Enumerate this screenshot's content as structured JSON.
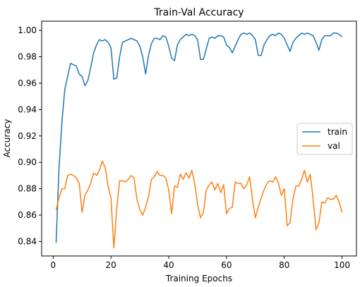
{
  "chart_data": {
    "type": "line",
    "title": "Train-Val Accuracy",
    "xlabel": "Training Epochs",
    "ylabel": "Accuracy",
    "xlim": [
      -4,
      105
    ],
    "ylim": [
      0.829,
      1.007
    ],
    "xticks": [
      0,
      20,
      40,
      60,
      80,
      100
    ],
    "yticks": [
      0.84,
      0.86,
      0.88,
      0.9,
      0.92,
      0.94,
      0.96,
      0.98,
      1.0
    ],
    "ytick_labels": [
      "0.84",
      "0.86",
      "0.88",
      "0.90",
      "0.92",
      "0.94",
      "0.96",
      "0.98",
      "1.00"
    ],
    "grid": false,
    "legend_position": "center-right",
    "x": [
      1,
      2,
      3,
      4,
      5,
      6,
      7,
      8,
      9,
      10,
      11,
      12,
      13,
      14,
      15,
      16,
      17,
      18,
      19,
      20,
      21,
      22,
      23,
      24,
      25,
      26,
      27,
      28,
      29,
      30,
      31,
      32,
      33,
      34,
      35,
      36,
      37,
      38,
      39,
      40,
      41,
      42,
      43,
      44,
      45,
      46,
      47,
      48,
      49,
      50,
      51,
      52,
      53,
      54,
      55,
      56,
      57,
      58,
      59,
      60,
      61,
      62,
      63,
      64,
      65,
      66,
      67,
      68,
      69,
      70,
      71,
      72,
      73,
      74,
      75,
      76,
      77,
      78,
      79,
      80,
      81,
      82,
      83,
      84,
      85,
      86,
      87,
      88,
      89,
      90,
      91,
      92,
      93,
      94,
      95,
      96,
      97,
      98,
      99,
      100
    ],
    "series": [
      {
        "name": "train",
        "color": "#1f77b4",
        "values": [
          0.839,
          0.895,
          0.93,
          0.955,
          0.965,
          0.975,
          0.974,
          0.973,
          0.967,
          0.965,
          0.958,
          0.962,
          0.972,
          0.983,
          0.989,
          0.993,
          0.992,
          0.993,
          0.991,
          0.987,
          0.963,
          0.964,
          0.98,
          0.991,
          0.992,
          0.993,
          0.994,
          0.993,
          0.992,
          0.988,
          0.98,
          0.967,
          0.981,
          0.99,
          0.994,
          0.994,
          0.993,
          0.996,
          0.995,
          0.988,
          0.979,
          0.977,
          0.989,
          0.993,
          0.995,
          0.997,
          0.996,
          0.997,
          0.996,
          0.993,
          0.978,
          0.978,
          0.986,
          0.994,
          0.995,
          0.994,
          0.996,
          0.996,
          0.995,
          0.989,
          0.987,
          0.983,
          0.988,
          0.993,
          0.997,
          0.998,
          0.997,
          0.998,
          0.996,
          0.993,
          0.981,
          0.981,
          0.989,
          0.993,
          0.996,
          0.997,
          0.996,
          0.998,
          0.997,
          0.994,
          0.989,
          0.984,
          0.991,
          0.994,
          0.996,
          0.998,
          0.997,
          0.998,
          0.997,
          0.996,
          0.991,
          0.985,
          0.993,
          0.996,
          0.996,
          0.996,
          0.998,
          0.998,
          0.997,
          0.995
        ]
      },
      {
        "name": "val",
        "color": "#ff7f0e",
        "values": [
          0.864,
          0.873,
          0.88,
          0.88,
          0.89,
          0.891,
          0.89,
          0.888,
          0.884,
          0.862,
          0.875,
          0.879,
          0.884,
          0.892,
          0.89,
          0.894,
          0.901,
          0.896,
          0.882,
          0.873,
          0.835,
          0.865,
          0.886,
          0.886,
          0.885,
          0.887,
          0.89,
          0.888,
          0.872,
          0.864,
          0.86,
          0.866,
          0.874,
          0.887,
          0.889,
          0.893,
          0.89,
          0.89,
          0.888,
          0.879,
          0.861,
          0.882,
          0.881,
          0.891,
          0.887,
          0.892,
          0.888,
          0.894,
          0.884,
          0.868,
          0.858,
          0.862,
          0.879,
          0.883,
          0.885,
          0.879,
          0.884,
          0.877,
          0.883,
          0.861,
          0.865,
          0.866,
          0.885,
          0.884,
          0.884,
          0.88,
          0.883,
          0.889,
          0.872,
          0.858,
          0.866,
          0.873,
          0.879,
          0.884,
          0.886,
          0.885,
          0.889,
          0.884,
          0.875,
          0.88,
          0.852,
          0.854,
          0.872,
          0.882,
          0.882,
          0.887,
          0.894,
          0.885,
          0.891,
          0.872,
          0.849,
          0.854,
          0.87,
          0.869,
          0.873,
          0.872,
          0.872,
          0.875,
          0.87,
          0.862
        ]
      }
    ]
  }
}
